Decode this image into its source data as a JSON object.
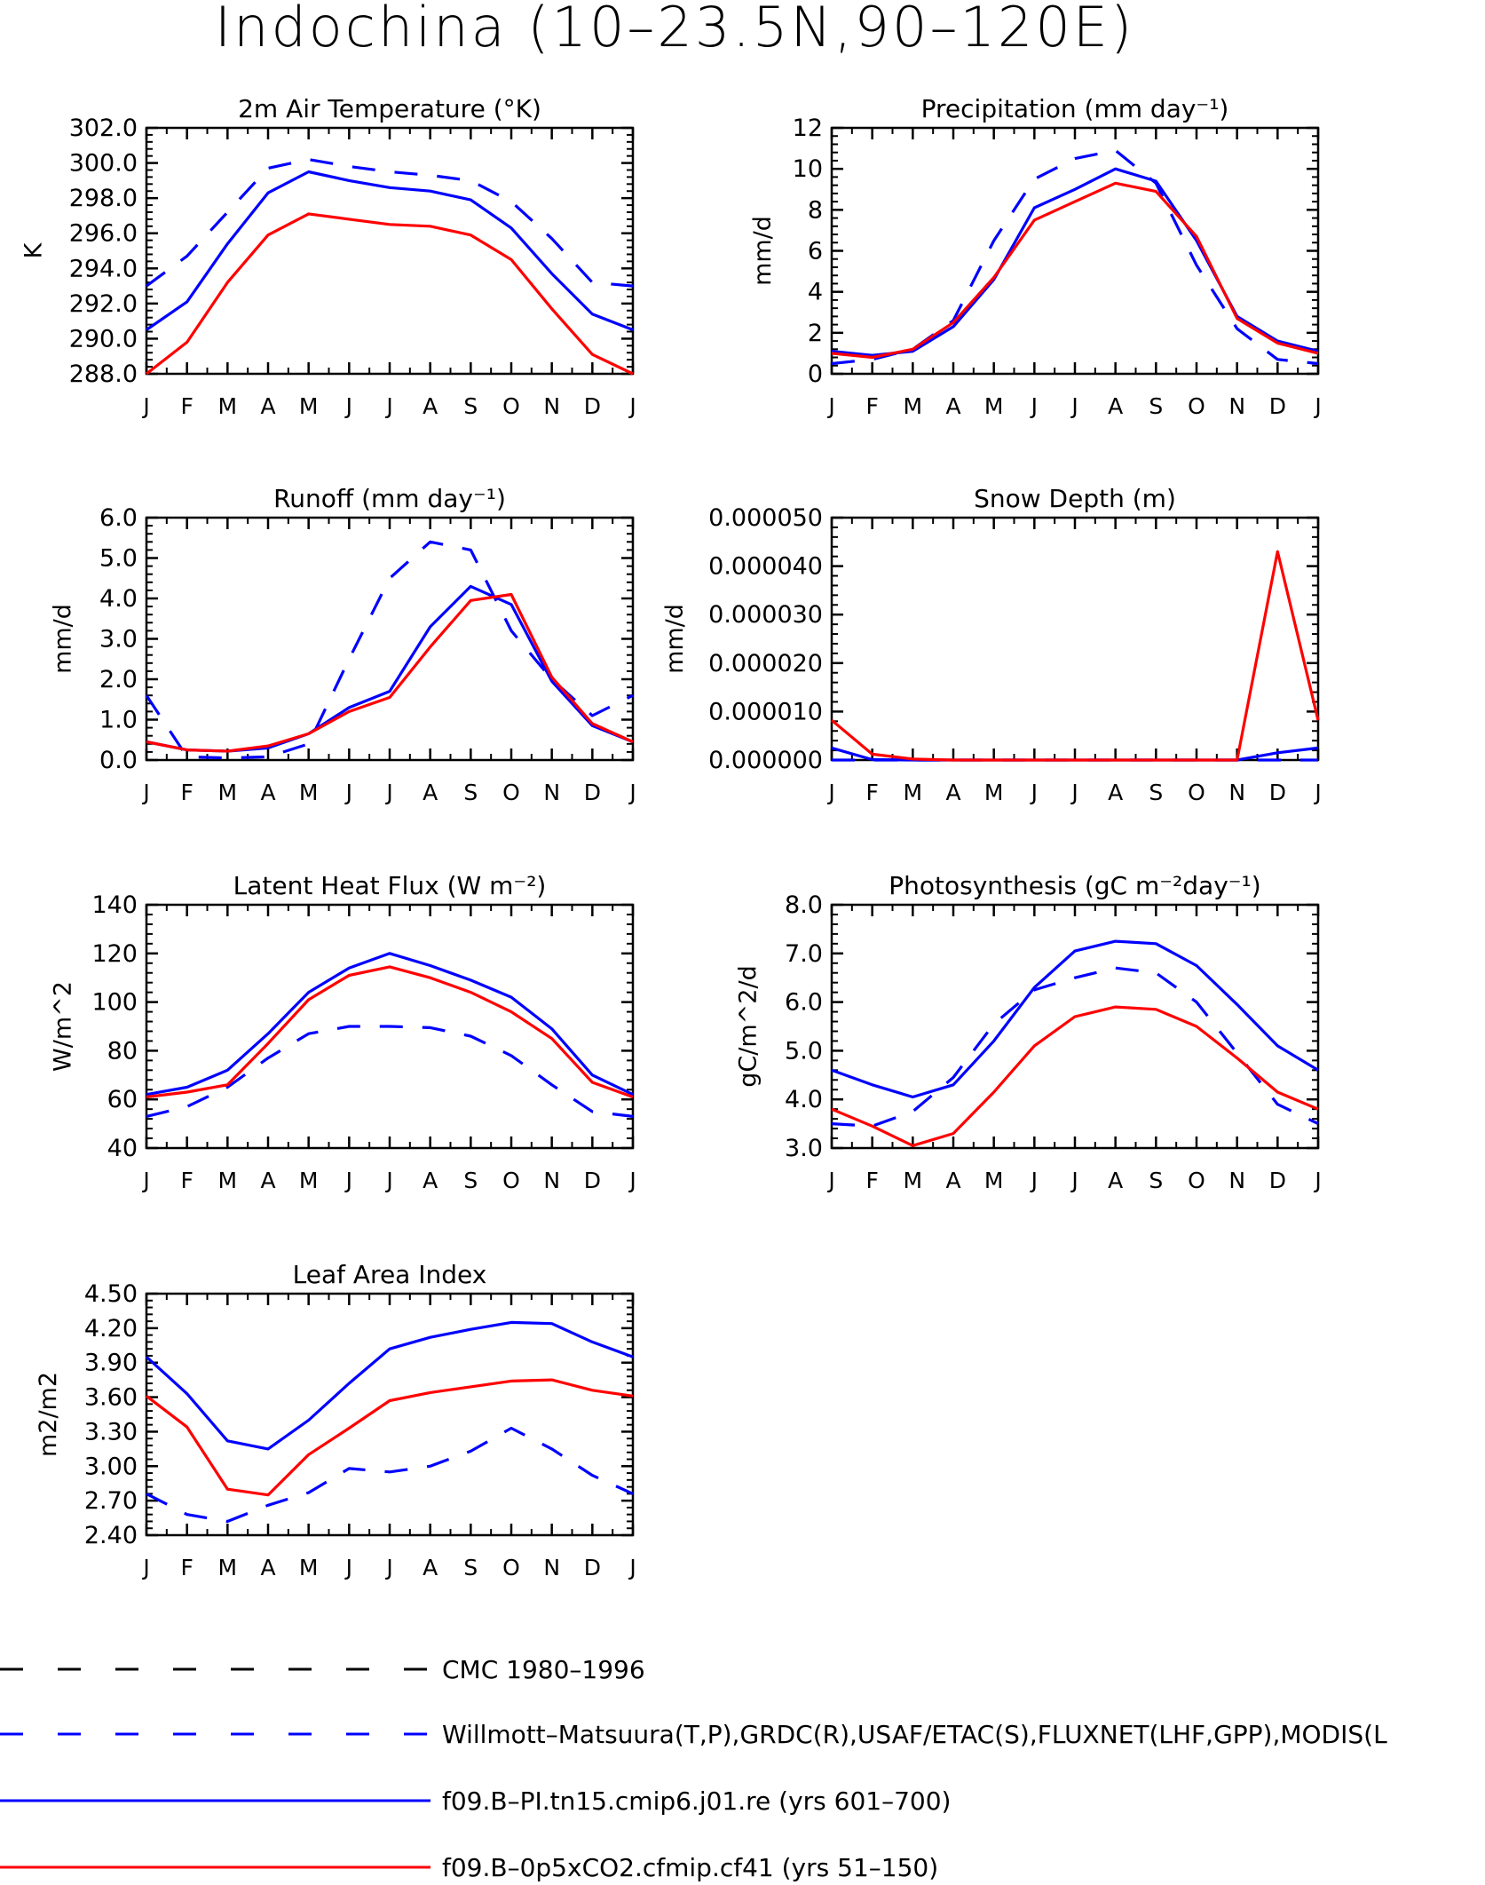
{
  "page_title": "Indochina (10–23.5N,90–120E)",
  "colors": {
    "cmc": "#000000",
    "obs": "#0000ff",
    "pi": "#0000ff",
    "exp": "#ff0000"
  },
  "legend": [
    {
      "key": "cmc",
      "label": "CMC 1980–1996",
      "style": "dashed"
    },
    {
      "key": "obs",
      "label": "Willmott–Matsuura(T,P),GRDC(R),USAF/ETAC(S),FLUXNET(LHF,GPP),MODIS(L",
      "style": "dashed"
    },
    {
      "key": "pi",
      "label": "f09.B–PI.tn15.cmip6.j01.re (yrs 601–700)",
      "style": "solid"
    },
    {
      "key": "exp",
      "label": "f09.B–0p5xCO2.cfmip.cf41 (yrs 51–150)",
      "style": "solid"
    }
  ],
  "chart_data": [
    {
      "type": "line",
      "title": "2m Air Temperature (°K)",
      "ylabel": "K",
      "categories": [
        "J",
        "F",
        "M",
        "A",
        "M",
        "J",
        "J",
        "A",
        "S",
        "O",
        "N",
        "D",
        "J"
      ],
      "ylim": [
        288.0,
        302.0
      ],
      "yticks": [
        "288.0",
        "290.0",
        "292.0",
        "294.0",
        "296.0",
        "298.0",
        "300.0",
        "302.0"
      ],
      "series": [
        {
          "key": "obs",
          "values": [
            293.0,
            294.7,
            297.2,
            299.7,
            300.2,
            299.8,
            299.5,
            299.3,
            299.0,
            297.8,
            295.7,
            293.2,
            293.0
          ]
        },
        {
          "key": "pi",
          "values": [
            290.5,
            292.1,
            295.4,
            298.3,
            299.5,
            299.0,
            298.6,
            298.4,
            297.9,
            296.3,
            293.7,
            291.4,
            290.5
          ]
        },
        {
          "key": "exp",
          "values": [
            288.0,
            289.8,
            293.2,
            295.9,
            297.1,
            296.8,
            296.5,
            296.4,
            295.9,
            294.5,
            291.7,
            289.1,
            288.0
          ]
        }
      ]
    },
    {
      "type": "line",
      "title": "Precipitation (mm day⁻¹)",
      "ylabel": "mm/d",
      "categories": [
        "J",
        "F",
        "M",
        "A",
        "M",
        "J",
        "J",
        "A",
        "S",
        "O",
        "N",
        "D",
        "J"
      ],
      "ylim": [
        0,
        12
      ],
      "yticks": [
        "0",
        "2",
        "4",
        "6",
        "8",
        "10",
        "12"
      ],
      "series": [
        {
          "key": "obs",
          "values": [
            0.5,
            0.7,
            1.2,
            2.6,
            6.5,
            9.5,
            10.5,
            10.9,
            9.3,
            5.3,
            2.2,
            0.7,
            0.5
          ]
        },
        {
          "key": "pi",
          "values": [
            1.1,
            0.9,
            1.1,
            2.3,
            4.6,
            8.1,
            9.0,
            10.0,
            9.4,
            6.5,
            2.8,
            1.6,
            1.1
          ]
        },
        {
          "key": "exp",
          "values": [
            1.0,
            0.8,
            1.2,
            2.5,
            4.7,
            7.5,
            8.4,
            9.3,
            8.9,
            6.7,
            2.7,
            1.5,
            1.0
          ]
        }
      ]
    },
    {
      "type": "line",
      "title": "Runoff (mm day⁻¹)",
      "ylabel": "mm/d",
      "categories": [
        "J",
        "F",
        "M",
        "A",
        "M",
        "J",
        "J",
        "A",
        "S",
        "O",
        "N",
        "D",
        "J"
      ],
      "ylim": [
        0.0,
        6.0
      ],
      "yticks": [
        "0.0",
        "1.0",
        "2.0",
        "3.0",
        "4.0",
        "5.0",
        "6.0"
      ],
      "series": [
        {
          "key": "obs",
          "values": [
            1.6,
            0.08,
            0.05,
            0.08,
            0.4,
            2.5,
            4.5,
            5.4,
            5.2,
            3.2,
            2.0,
            1.1,
            1.6
          ]
        },
        {
          "key": "pi",
          "values": [
            0.45,
            0.25,
            0.22,
            0.3,
            0.65,
            1.3,
            1.7,
            3.3,
            4.3,
            3.85,
            1.95,
            0.85,
            0.45
          ]
        },
        {
          "key": "exp",
          "values": [
            0.45,
            0.25,
            0.22,
            0.35,
            0.65,
            1.2,
            1.55,
            2.8,
            3.95,
            4.1,
            2.05,
            0.9,
            0.45
          ]
        }
      ]
    },
    {
      "type": "line",
      "title": "Snow Depth (m)",
      "ylabel": "mm/d",
      "categories": [
        "J",
        "F",
        "M",
        "A",
        "M",
        "J",
        "J",
        "A",
        "S",
        "O",
        "N",
        "D",
        "J"
      ],
      "ylim": [
        0.0,
        5e-05
      ],
      "yticks": [
        "0.000000",
        "0.000010",
        "0.000020",
        "0.000030",
        "0.000040",
        "0.000050"
      ],
      "series": [
        {
          "key": "obs",
          "values": [
            0,
            0,
            0,
            0,
            0,
            0,
            0,
            0,
            0,
            0,
            0,
            0,
            0
          ]
        },
        {
          "key": "pi",
          "values": [
            2.5e-06,
            1e-07,
            0,
            0,
            0,
            0,
            0,
            0,
            0,
            0,
            0,
            1.5e-06,
            2.5e-06
          ]
        },
        {
          "key": "exp",
          "values": [
            8.2e-06,
            1.2e-06,
            2e-07,
            0,
            0,
            0,
            0,
            0,
            0,
            0,
            0,
            4.3e-05,
            8.2e-06
          ]
        }
      ]
    },
    {
      "type": "line",
      "title": "Latent Heat Flux (W m⁻²)",
      "ylabel": "W/m^2",
      "categories": [
        "J",
        "F",
        "M",
        "A",
        "M",
        "J",
        "J",
        "A",
        "S",
        "O",
        "N",
        "D",
        "J"
      ],
      "ylim": [
        40,
        140
      ],
      "yticks": [
        "40",
        "60",
        "80",
        "100",
        "120",
        "140"
      ],
      "series": [
        {
          "key": "obs",
          "values": [
            53,
            57,
            65,
            77,
            87,
            90,
            90,
            89.5,
            86,
            78,
            66,
            55,
            53
          ]
        },
        {
          "key": "pi",
          "values": [
            62,
            65,
            72,
            87,
            104,
            114,
            120,
            115,
            109,
            102,
            89,
            70,
            62
          ]
        },
        {
          "key": "exp",
          "values": [
            61,
            63,
            66,
            83,
            101,
            111,
            114.5,
            110,
            104,
            96,
            85,
            67,
            61
          ]
        }
      ]
    },
    {
      "type": "line",
      "title": "Photosynthesis (gC m⁻²day⁻¹)",
      "ylabel": "gC/m^2/d",
      "categories": [
        "J",
        "F",
        "M",
        "A",
        "M",
        "J",
        "J",
        "A",
        "S",
        "O",
        "N",
        "D",
        "J"
      ],
      "ylim": [
        3.0,
        8.0
      ],
      "yticks": [
        "3.0",
        "4.0",
        "5.0",
        "6.0",
        "7.0",
        "8.0"
      ],
      "series": [
        {
          "key": "obs",
          "values": [
            3.5,
            3.45,
            3.75,
            4.45,
            5.55,
            6.25,
            6.5,
            6.7,
            6.6,
            6.0,
            4.95,
            3.9,
            3.5
          ]
        },
        {
          "key": "pi",
          "values": [
            4.6,
            4.3,
            4.05,
            4.3,
            5.2,
            6.3,
            7.05,
            7.25,
            7.2,
            6.75,
            5.95,
            5.1,
            4.6
          ]
        },
        {
          "key": "exp",
          "values": [
            3.8,
            3.45,
            3.05,
            3.3,
            4.15,
            5.1,
            5.7,
            5.9,
            5.85,
            5.5,
            4.85,
            4.15,
            3.8
          ]
        }
      ]
    },
    {
      "type": "line",
      "title": "Leaf Area Index",
      "ylabel": "m2/m2",
      "categories": [
        "J",
        "F",
        "M",
        "A",
        "M",
        "J",
        "J",
        "A",
        "S",
        "O",
        "N",
        "D",
        "J"
      ],
      "ylim": [
        2.4,
        4.5
      ],
      "yticks": [
        "2.40",
        "2.70",
        "3.00",
        "3.30",
        "3.60",
        "3.90",
        "4.20",
        "4.50"
      ],
      "series": [
        {
          "key": "obs",
          "values": [
            2.76,
            2.58,
            2.52,
            2.66,
            2.77,
            2.98,
            2.95,
            3.0,
            3.13,
            3.33,
            3.15,
            2.92,
            2.76
          ]
        },
        {
          "key": "pi",
          "values": [
            3.95,
            3.63,
            3.22,
            3.15,
            3.4,
            3.72,
            4.02,
            4.12,
            4.19,
            4.25,
            4.24,
            4.08,
            3.95
          ]
        },
        {
          "key": "exp",
          "values": [
            3.61,
            3.34,
            2.8,
            2.75,
            3.1,
            3.33,
            3.57,
            3.64,
            3.69,
            3.74,
            3.75,
            3.66,
            3.61
          ]
        }
      ]
    }
  ]
}
